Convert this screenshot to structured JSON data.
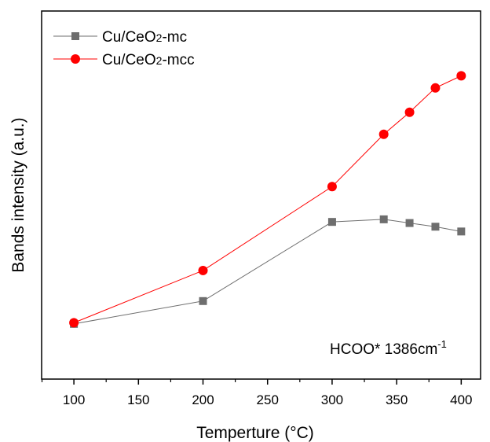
{
  "chart_data": {
    "type": "line",
    "title": "",
    "xlabel": "Temperture (°C)",
    "ylabel": "Bands intensity (a.u.)",
    "xlim": [
      75,
      415
    ],
    "ylim": [
      0,
      1
    ],
    "x_ticks": [
      100,
      150,
      200,
      250,
      300,
      350,
      400
    ],
    "y_ticks_shown": false,
    "grid": false,
    "legend_position": "top-left",
    "annotation": {
      "text": "HCOO* 1386cm",
      "superscript": "-1"
    },
    "series": [
      {
        "name": "Cu/CeO2-mc",
        "name_parts": [
          "Cu/CeO",
          "2",
          "-mc"
        ],
        "color": "#6e6e6e",
        "marker": "square",
        "x": [
          100,
          200,
          300,
          340,
          360,
          380,
          400
        ],
        "y": [
          0.15,
          0.212,
          0.427,
          0.434,
          0.424,
          0.414,
          0.401
        ]
      },
      {
        "name": "Cu/CeO2-mcc",
        "name_parts": [
          "Cu/CeO",
          "2",
          "-mcc"
        ],
        "color": "#ff0000",
        "marker": "circle",
        "x": [
          100,
          200,
          300,
          340,
          360,
          380,
          400
        ],
        "y": [
          0.153,
          0.295,
          0.523,
          0.665,
          0.725,
          0.791,
          0.824
        ]
      }
    ]
  }
}
